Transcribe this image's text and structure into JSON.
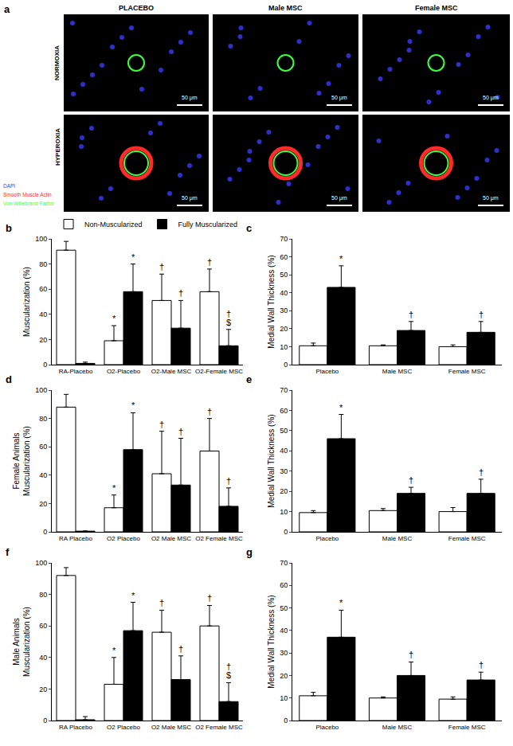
{
  "panel_a": {
    "label": "a",
    "columns": [
      "PLACEBO",
      "Male MSC",
      "Female MSC"
    ],
    "rows": [
      "NORMOXIA",
      "HYPEROXIA"
    ],
    "stains": [
      {
        "name": "DAPI",
        "color": "#3b3bff"
      },
      {
        "name": "Smooth Muscle Actin",
        "color": "#ff2a2a"
      },
      {
        "name": "Von Willebrand Factor",
        "color": "#3cff3c"
      }
    ],
    "scale_bar": "50 μm"
  },
  "chart_data": [
    {
      "type": "bar",
      "panel": "b",
      "ylabel": "Muscularization (%)",
      "categories": [
        "RA-Placebo",
        "O2-Placebo",
        "O2-Male MSC",
        "O2-Female MSC"
      ],
      "series": [
        {
          "name": "Non-Muscularized",
          "color": "#ffffff",
          "values": [
            91,
            19,
            51,
            58
          ],
          "errors": [
            7,
            12,
            21,
            18
          ]
        },
        {
          "name": "Fully Muscularized",
          "color": "#000000",
          "values": [
            1,
            58,
            29,
            15
          ],
          "errors": [
            1,
            22,
            22,
            13
          ]
        }
      ],
      "ylim": [
        0,
        100
      ],
      "yticks": [
        0,
        20,
        40,
        60,
        80,
        100
      ],
      "grid": false,
      "legend": "top",
      "annotations": [
        {
          "category": "O2-Placebo",
          "series": 0,
          "text": "*"
        },
        {
          "category": "O2-Placebo",
          "series": 1,
          "text": "*"
        },
        {
          "category": "O2-Male MSC",
          "series": 0,
          "text": "†"
        },
        {
          "category": "O2-Male MSC",
          "series": 1,
          "text": "†"
        },
        {
          "category": "O2-Female MSC",
          "series": 0,
          "text": "†"
        },
        {
          "category": "O2-Female MSC",
          "series": 1,
          "text": "$"
        },
        {
          "category": "O2-Female MSC",
          "series": 1,
          "text": "†"
        }
      ]
    },
    {
      "type": "bar",
      "panel": "c",
      "ylabel": "Medial Wall Thickness (%)",
      "categories": [
        "Placebo",
        "Male MSC",
        "Female MSC"
      ],
      "series": [
        {
          "color": "#ffffff",
          "values": [
            10.5,
            10.5,
            10
          ],
          "errors": [
            1.5,
            0.5,
            1
          ]
        },
        {
          "color": "#000000",
          "values": [
            43,
            19,
            18
          ],
          "errors": [
            12,
            5,
            6
          ]
        }
      ],
      "ylim": [
        0,
        70
      ],
      "yticks": [
        0,
        10,
        20,
        30,
        40,
        50,
        60,
        70
      ],
      "grid": false,
      "annotations": [
        {
          "category": "Placebo",
          "series": 1,
          "text": "*"
        },
        {
          "category": "Male MSC",
          "series": 1,
          "text": "†"
        },
        {
          "category": "Female MSC",
          "series": 1,
          "text": "†"
        }
      ]
    },
    {
      "type": "bar",
      "panel": "d",
      "ylabel": "Female Animals\nMuscularization (%)",
      "categories": [
        "RA Placebo",
        "O2 Placebo",
        "O2 Male MSC",
        "O2 Female MSC"
      ],
      "series": [
        {
          "color": "#ffffff",
          "values": [
            88,
            17,
            41,
            57
          ],
          "errors": [
            9,
            9,
            30,
            23
          ]
        },
        {
          "color": "#000000",
          "values": [
            0.5,
            58,
            33,
            18
          ],
          "errors": [
            0,
            26,
            33,
            13
          ]
        }
      ],
      "ylim": [
        0,
        100
      ],
      "yticks": [
        0,
        20,
        40,
        60,
        80,
        100
      ],
      "grid": false,
      "annotations": [
        {
          "category": "O2 Placebo",
          "series": 0,
          "text": "*"
        },
        {
          "category": "O2 Placebo",
          "series": 1,
          "text": "*"
        },
        {
          "category": "O2 Male MSC",
          "series": 0,
          "text": "†"
        },
        {
          "category": "O2 Male MSC",
          "series": 1,
          "text": "†"
        },
        {
          "category": "O2 Female MSC",
          "series": 0,
          "text": "†"
        },
        {
          "category": "O2 Female MSC",
          "series": 1,
          "text": "†"
        }
      ]
    },
    {
      "type": "bar",
      "panel": "e",
      "ylabel": "Medial Wall Thickness (%)",
      "categories": [
        "Placebo",
        "Male MSC",
        "Female MSC"
      ],
      "series": [
        {
          "color": "#ffffff",
          "values": [
            9.5,
            10.5,
            10
          ],
          "errors": [
            1,
            1,
            2
          ]
        },
        {
          "color": "#000000",
          "values": [
            46,
            19,
            19
          ],
          "errors": [
            12,
            3,
            7
          ]
        }
      ],
      "ylim": [
        0,
        70
      ],
      "yticks": [
        0,
        10,
        20,
        30,
        40,
        50,
        60,
        70
      ],
      "grid": false,
      "annotations": [
        {
          "category": "Placebo",
          "series": 1,
          "text": "*"
        },
        {
          "category": "Male MSC",
          "series": 1,
          "text": "†"
        },
        {
          "category": "Female MSC",
          "series": 1,
          "text": "†"
        }
      ]
    },
    {
      "type": "bar",
      "panel": "f",
      "ylabel": "Male Animals\nMuscularization (%)",
      "categories": [
        "RA Placebo",
        "O2 Placebo",
        "O2 Male MSC",
        "O2 Female MSC"
      ],
      "series": [
        {
          "color": "#ffffff",
          "values": [
            92,
            23,
            56,
            60
          ],
          "errors": [
            5,
            17,
            14,
            13
          ]
        },
        {
          "color": "#000000",
          "values": [
            0.5,
            57,
            26,
            12
          ],
          "errors": [
            2,
            18,
            15,
            12
          ]
        }
      ],
      "ylim": [
        0,
        100
      ],
      "yticks": [
        0,
        20,
        40,
        60,
        80,
        100
      ],
      "grid": false,
      "annotations": [
        {
          "category": "O2 Placebo",
          "series": 0,
          "text": "*"
        },
        {
          "category": "O2 Placebo",
          "series": 1,
          "text": "*"
        },
        {
          "category": "O2 Male MSC",
          "series": 0,
          "text": "†"
        },
        {
          "category": "O2 Male MSC",
          "series": 1,
          "text": "†"
        },
        {
          "category": "O2 Female MSC",
          "series": 0,
          "text": "†"
        },
        {
          "category": "O2 Female MSC",
          "series": 1,
          "text": "$"
        },
        {
          "category": "O2 Female MSC",
          "series": 1,
          "text": "†"
        }
      ]
    },
    {
      "type": "bar",
      "panel": "g",
      "ylabel": "Medial Wall Thickness (%)",
      "categories": [
        "Placebo",
        "Male MSC",
        "Female MSC"
      ],
      "series": [
        {
          "color": "#ffffff",
          "values": [
            11,
            10,
            9.5
          ],
          "errors": [
            1.5,
            0.5,
            1
          ]
        },
        {
          "color": "#000000",
          "values": [
            37,
            20,
            18
          ],
          "errors": [
            12,
            6,
            3.5
          ]
        }
      ],
      "ylim": [
        0,
        70
      ],
      "yticks": [
        0,
        10,
        20,
        30,
        40,
        50,
        60,
        70
      ],
      "grid": false,
      "annotations": [
        {
          "category": "Placebo",
          "series": 1,
          "text": "*"
        },
        {
          "category": "Male MSC",
          "series": 1,
          "text": "†"
        },
        {
          "category": "Female MSC",
          "series": 1,
          "text": "†"
        }
      ]
    }
  ]
}
